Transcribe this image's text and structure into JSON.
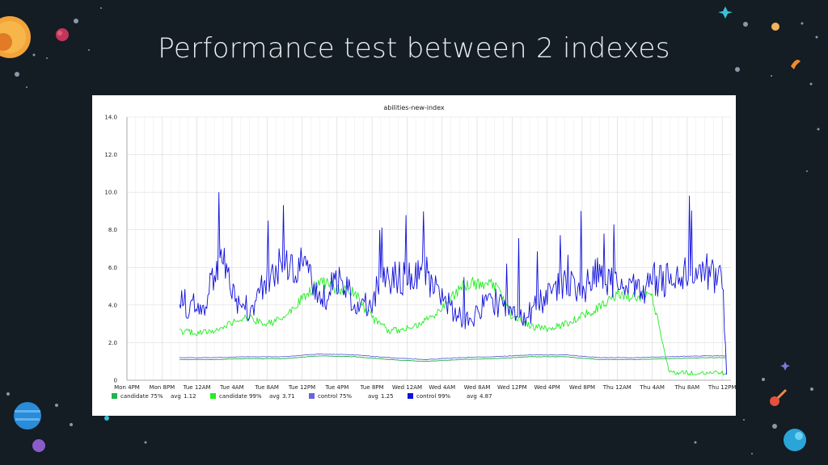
{
  "slide": {
    "title": "Performance test between 2 indexes",
    "background": "#141c24"
  },
  "chart_data": {
    "type": "line",
    "title": "abilities-new-index",
    "ylim": [
      0,
      14
    ],
    "yticks": [
      "0",
      "2.0",
      "4.0",
      "6.0",
      "8.0",
      "10.0",
      "12.0",
      "14.0"
    ],
    "xticks": [
      "Mon 4PM",
      "Mon 8PM",
      "Tue 12AM",
      "Tue 4AM",
      "Tue 8AM",
      "Tue 12PM",
      "Tue 4PM",
      "Tue 8PM",
      "Wed 12AM",
      "Wed 4AM",
      "Wed 8AM",
      "Wed 12PM",
      "Wed 4PM",
      "Wed 8PM",
      "Thu 12AM",
      "Thu 4AM",
      "Thu 8AM",
      "Thu 12PM"
    ],
    "x_hours_range": [
      0,
      69
    ],
    "grid": true,
    "series": [
      {
        "name": "candidate 75%",
        "avg_label": "avg",
        "avg": "1.12",
        "color": "#22b14c",
        "t": [
          6,
          10,
          14,
          18,
          22,
          26,
          30,
          34,
          38,
          42,
          46,
          50,
          54,
          58,
          62,
          66,
          68.5
        ],
        "y": [
          1.1,
          1.1,
          1.15,
          1.15,
          1.3,
          1.25,
          1.1,
          1.0,
          1.1,
          1.15,
          1.25,
          1.25,
          1.1,
          1.1,
          1.15,
          1.2,
          1.2
        ]
      },
      {
        "name": "candidate 99%",
        "avg_label": "avg",
        "avg": "3.71",
        "color": "#22ee22",
        "t": [
          6,
          8,
          10,
          12,
          14,
          16,
          18,
          20,
          22,
          24,
          26,
          28,
          30,
          32,
          34,
          36,
          38,
          40,
          42,
          44,
          46,
          48,
          50,
          52,
          54,
          56,
          58,
          60,
          62,
          64,
          66,
          68,
          68.5
        ],
        "y": [
          2.6,
          2.5,
          2.6,
          3.1,
          3.3,
          3.0,
          3.3,
          4.3,
          5.2,
          4.9,
          4.6,
          3.3,
          2.6,
          2.8,
          3.1,
          3.8,
          4.9,
          5.2,
          5.0,
          3.4,
          2.9,
          2.7,
          3.0,
          3.4,
          3.9,
          4.6,
          4.4,
          4.5,
          0.4,
          0.4,
          0.4,
          0.4,
          0.4
        ]
      },
      {
        "name": "control 75%",
        "avg_label": "avg",
        "avg": "1.25",
        "color": "#6666dd",
        "t": [
          6,
          10,
          14,
          18,
          22,
          26,
          30,
          34,
          38,
          42,
          46,
          50,
          54,
          58,
          62,
          66,
          68.5
        ],
        "y": [
          1.2,
          1.2,
          1.25,
          1.25,
          1.4,
          1.35,
          1.2,
          1.1,
          1.2,
          1.25,
          1.35,
          1.35,
          1.2,
          1.2,
          1.25,
          1.3,
          1.3
        ]
      },
      {
        "name": "control 99%",
        "avg_label": "avg",
        "avg": "4.87",
        "color": "#1010dd",
        "t": [
          6,
          7,
          8,
          9,
          10,
          11,
          12,
          13,
          14,
          15,
          16,
          17,
          18,
          19,
          20,
          21,
          22,
          23,
          24,
          25,
          26,
          27,
          28,
          29,
          30,
          31,
          32,
          33,
          34,
          35,
          36,
          37,
          38,
          39,
          40,
          41,
          42,
          43,
          44,
          45,
          46,
          47,
          48,
          49,
          50,
          51,
          52,
          53,
          54,
          55,
          56,
          57,
          58,
          59,
          60,
          61,
          62,
          63,
          64,
          65,
          66,
          67,
          68,
          68.5
        ],
        "y": [
          4.5,
          3.9,
          4.1,
          4.2,
          5.5,
          6.2,
          4.5,
          4.0,
          3.8,
          4.6,
          5.3,
          6.0,
          6.4,
          5.8,
          6.0,
          5.4,
          4.4,
          4.6,
          5.2,
          4.8,
          4.3,
          4.0,
          4.2,
          4.9,
          5.5,
          5.6,
          5.4,
          5.9,
          5.8,
          4.9,
          4.7,
          3.8,
          3.5,
          3.2,
          3.6,
          4.4,
          4.2,
          3.8,
          3.4,
          3.3,
          3.6,
          4.0,
          4.5,
          4.8,
          5.0,
          5.1,
          4.9,
          5.2,
          5.8,
          5.4,
          5.2,
          5.3,
          4.9,
          4.8,
          5.4,
          5.2,
          5.5,
          5.4,
          5.6,
          5.3,
          5.9,
          5.6,
          5.5,
          0.3
        ]
      }
    ]
  }
}
